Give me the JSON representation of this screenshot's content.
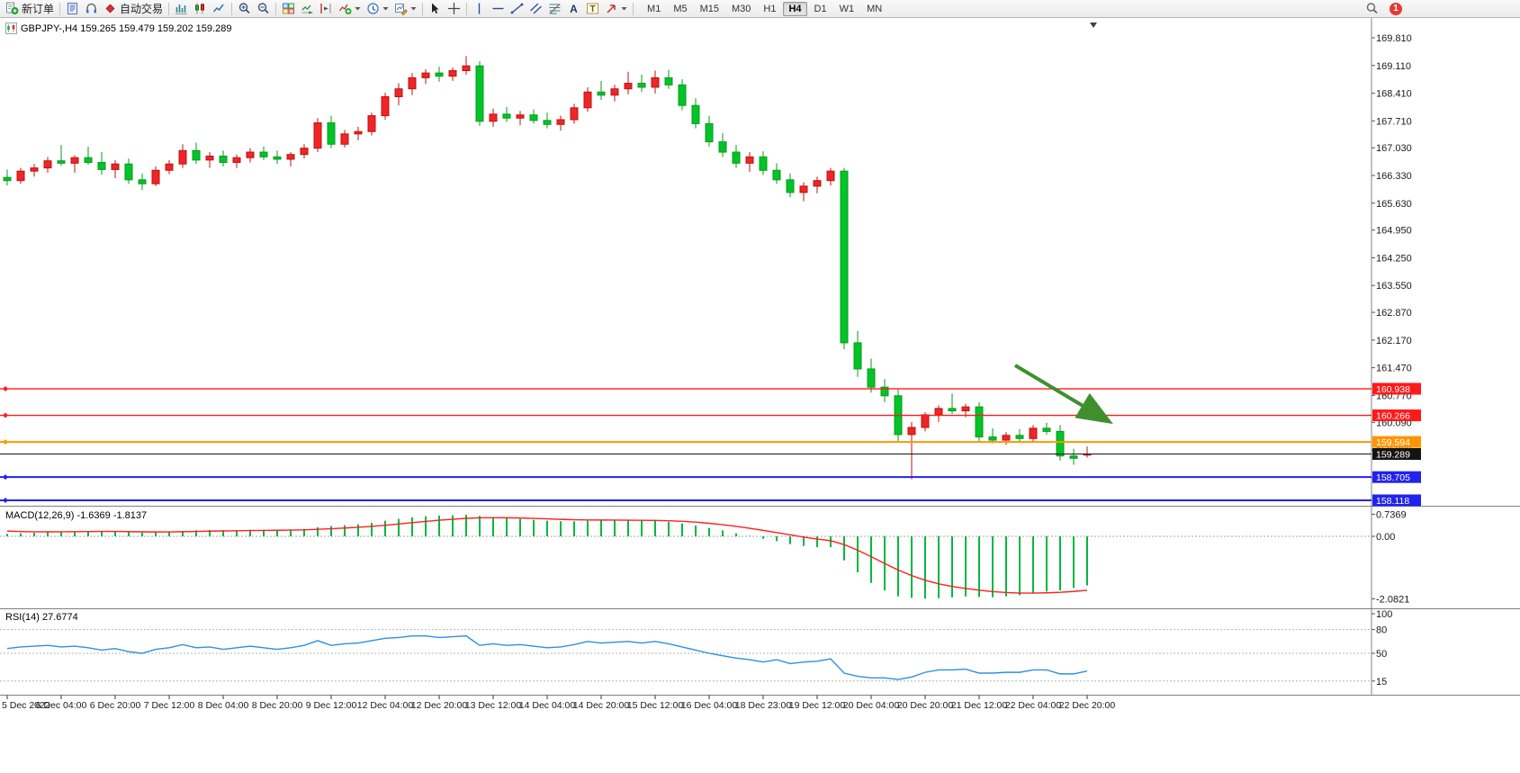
{
  "glyphs": {
    "text_tool": "A",
    "label_tool": "T"
  },
  "toolbar": {
    "new_order_label": "新订单",
    "autotrading_label": "自动交易",
    "timeframes": [
      "M1",
      "M5",
      "M15",
      "M30",
      "H1",
      "H4",
      "D1",
      "W1",
      "MN"
    ],
    "active_timeframe": "H4",
    "notification_count": "1"
  },
  "chart_header": {
    "title": "GBPJPY-,H4 159.265 159.479 159.202 159.289"
  },
  "panels": {
    "macd_label": "MACD(12,26,9) -1.6369 -1.8137",
    "rsi_label": "RSI(14) 27.6774"
  },
  "price_lines": [
    {
      "label": "160.938",
      "price": 160.938,
      "color": "#ff1a1a",
      "width": 1.4,
      "role": "resistance"
    },
    {
      "label": "160.266",
      "price": 160.266,
      "color": "#ff1a1a",
      "width": 1.4,
      "role": "resistance"
    },
    {
      "label": "159.594",
      "price": 159.594,
      "color": "#ff9500",
      "width": 2,
      "role": "support"
    },
    {
      "label": "159.289",
      "price": 159.289,
      "color": "#141414",
      "width": 1,
      "role": "current-bid"
    },
    {
      "label": "158.705",
      "price": 158.705,
      "color": "#2222ee",
      "width": 2,
      "role": "support"
    },
    {
      "label": "158.118",
      "price": 158.118,
      "color": "#2222ee",
      "width": 2,
      "role": "support"
    }
  ],
  "annotation": {
    "type": "arrow",
    "color": "#3f8f2f"
  },
  "colors": {
    "bull": "#f02525",
    "bull_border": "#b81414",
    "bear": "#00c428",
    "bear_border": "#089a1c",
    "macd_hist": "#00b840",
    "macd_signal": "#ff2020",
    "rsi_line": "#2f8fe0",
    "box_text": "#ffffff"
  },
  "chart_data": {
    "type": "candlestick",
    "symbol": "GBPJPY-",
    "timeframe": "H4",
    "convention": "red = bullish (close>open), green = bearish (close<open)",
    "y_range": [
      158.0,
      169.95
    ],
    "grid": false,
    "price_tick_labels": [
      "169.810",
      "169.110",
      "168.410",
      "167.710",
      "167.030",
      "166.330",
      "165.630",
      "164.950",
      "164.250",
      "163.550",
      "162.870",
      "162.170",
      "161.470",
      "160.770",
      "160.090",
      "159.390",
      "158.690"
    ],
    "price_tick_values": [
      169.81,
      169.11,
      168.41,
      167.71,
      167.03,
      166.33,
      165.63,
      164.95,
      164.25,
      163.55,
      162.87,
      162.17,
      161.47,
      160.77,
      160.09,
      159.39,
      158.69
    ],
    "x_tick_labels": [
      "5 Dec 2022",
      "6 Dec 04:00",
      "6 Dec 20:00",
      "7 Dec 12:00",
      "8 Dec 04:00",
      "8 Dec 20:00",
      "9 Dec 12:00",
      "12 Dec 04:00",
      "12 Dec 20:00",
      "13 Dec 12:00",
      "14 Dec 04:00",
      "14 Dec 20:00",
      "15 Dec 12:00",
      "16 Dec 04:00",
      "18 Dec 23:00",
      "19 Dec 12:00",
      "20 Dec 04:00",
      "20 Dec 20:00",
      "21 Dec 12:00",
      "22 Dec 04:00",
      "22 Dec 20:00"
    ],
    "macd_axis": {
      "max": "0.7369",
      "zero": "0.00",
      "min": "-2.0821"
    },
    "rsi_axis_levels": [
      "100",
      "80",
      "50",
      "15"
    ],
    "candles_ohlc": [
      [
        166.28,
        166.48,
        166.08,
        166.2
      ],
      [
        166.2,
        166.52,
        166.12,
        166.44
      ],
      [
        166.44,
        166.62,
        166.3,
        166.52
      ],
      [
        166.52,
        166.8,
        166.4,
        166.7
      ],
      [
        166.7,
        167.1,
        166.58,
        166.64
      ],
      [
        166.64,
        166.84,
        166.4,
        166.78
      ],
      [
        166.78,
        167.06,
        166.6,
        166.66
      ],
      [
        166.66,
        166.92,
        166.35,
        166.48
      ],
      [
        166.48,
        166.72,
        166.26,
        166.62
      ],
      [
        166.62,
        166.76,
        166.12,
        166.22
      ],
      [
        166.22,
        166.38,
        165.96,
        166.12
      ],
      [
        166.12,
        166.56,
        166.06,
        166.46
      ],
      [
        166.46,
        166.72,
        166.36,
        166.62
      ],
      [
        166.62,
        167.12,
        166.52,
        166.96
      ],
      [
        166.96,
        167.16,
        166.62,
        166.72
      ],
      [
        166.72,
        166.92,
        166.52,
        166.82
      ],
      [
        166.82,
        166.96,
        166.56,
        166.66
      ],
      [
        166.66,
        166.86,
        166.52,
        166.78
      ],
      [
        166.78,
        167.02,
        166.66,
        166.92
      ],
      [
        166.92,
        167.06,
        166.72,
        166.8
      ],
      [
        166.8,
        166.96,
        166.62,
        166.74
      ],
      [
        166.74,
        166.92,
        166.56,
        166.86
      ],
      [
        166.86,
        167.12,
        166.76,
        167.02
      ],
      [
        167.02,
        167.78,
        166.92,
        167.66
      ],
      [
        167.66,
        167.84,
        167.02,
        167.12
      ],
      [
        167.12,
        167.48,
        167.04,
        167.38
      ],
      [
        167.38,
        167.56,
        167.22,
        167.44
      ],
      [
        167.44,
        167.92,
        167.34,
        167.84
      ],
      [
        167.84,
        168.42,
        167.74,
        168.32
      ],
      [
        168.32,
        168.66,
        168.1,
        168.52
      ],
      [
        168.52,
        168.92,
        168.36,
        168.8
      ],
      [
        168.8,
        169.02,
        168.64,
        168.92
      ],
      [
        168.92,
        169.08,
        168.7,
        168.84
      ],
      [
        168.84,
        169.06,
        168.72,
        168.98
      ],
      [
        168.98,
        169.35,
        168.88,
        169.1
      ],
      [
        169.1,
        169.22,
        167.58,
        167.7
      ],
      [
        167.7,
        168.02,
        167.56,
        167.88
      ],
      [
        167.88,
        168.06,
        167.68,
        167.78
      ],
      [
        167.78,
        167.96,
        167.6,
        167.86
      ],
      [
        167.86,
        168.0,
        167.64,
        167.72
      ],
      [
        167.72,
        167.92,
        167.52,
        167.62
      ],
      [
        167.62,
        167.84,
        167.46,
        167.74
      ],
      [
        167.74,
        168.14,
        167.64,
        168.04
      ],
      [
        168.04,
        168.56,
        167.94,
        168.44
      ],
      [
        168.44,
        168.72,
        168.24,
        168.36
      ],
      [
        168.36,
        168.62,
        168.2,
        168.52
      ],
      [
        168.52,
        168.95,
        168.38,
        168.66
      ],
      [
        168.66,
        168.88,
        168.44,
        168.56
      ],
      [
        168.56,
        168.98,
        168.4,
        168.8
      ],
      [
        168.8,
        169.0,
        168.52,
        168.62
      ],
      [
        168.62,
        168.76,
        167.98,
        168.1
      ],
      [
        168.1,
        168.28,
        167.52,
        167.64
      ],
      [
        167.64,
        167.84,
        167.06,
        167.18
      ],
      [
        167.18,
        167.4,
        166.8,
        166.92
      ],
      [
        166.92,
        167.1,
        166.52,
        166.64
      ],
      [
        166.64,
        166.92,
        166.42,
        166.8
      ],
      [
        166.8,
        166.94,
        166.34,
        166.46
      ],
      [
        166.46,
        166.64,
        166.12,
        166.22
      ],
      [
        166.22,
        166.38,
        165.78,
        165.9
      ],
      [
        165.9,
        166.16,
        165.68,
        166.06
      ],
      [
        166.06,
        166.3,
        165.88,
        166.2
      ],
      [
        166.2,
        166.52,
        166.08,
        166.44
      ],
      [
        166.44,
        166.52,
        161.94,
        162.1
      ],
      [
        162.1,
        162.4,
        161.24,
        161.44
      ],
      [
        161.44,
        161.7,
        160.84,
        160.98
      ],
      [
        160.98,
        161.18,
        160.6,
        160.76
      ],
      [
        160.76,
        160.92,
        159.62,
        159.78
      ],
      [
        159.78,
        160.1,
        158.65,
        159.96
      ],
      [
        159.96,
        160.35,
        159.86,
        160.28
      ],
      [
        160.28,
        160.52,
        160.1,
        160.44
      ],
      [
        160.44,
        160.82,
        160.3,
        160.38
      ],
      [
        160.38,
        160.56,
        160.22,
        160.48
      ],
      [
        160.48,
        160.6,
        159.6,
        159.72
      ],
      [
        159.72,
        159.94,
        159.56,
        159.64
      ],
      [
        159.64,
        159.84,
        159.52,
        159.76
      ],
      [
        159.76,
        159.92,
        159.6,
        159.68
      ],
      [
        159.68,
        160.02,
        159.58,
        159.94
      ],
      [
        159.94,
        160.08,
        159.78,
        159.86
      ],
      [
        159.86,
        160.02,
        159.12,
        159.24
      ],
      [
        159.24,
        159.42,
        159.02,
        159.18
      ],
      [
        159.265,
        159.479,
        159.202,
        159.289
      ]
    ],
    "series": [
      {
        "name": "MACD(12,26,9) histogram",
        "values": [
          0.08,
          0.1,
          0.12,
          0.14,
          0.16,
          0.17,
          0.18,
          0.17,
          0.16,
          0.14,
          0.12,
          0.13,
          0.15,
          0.18,
          0.2,
          0.21,
          0.21,
          0.21,
          0.22,
          0.22,
          0.22,
          0.23,
          0.25,
          0.3,
          0.34,
          0.37,
          0.4,
          0.45,
          0.52,
          0.58,
          0.63,
          0.67,
          0.69,
          0.7,
          0.72,
          0.68,
          0.64,
          0.61,
          0.58,
          0.55,
          0.52,
          0.5,
          0.5,
          0.52,
          0.53,
          0.53,
          0.53,
          0.52,
          0.51,
          0.48,
          0.43,
          0.36,
          0.28,
          0.2,
          0.1,
          0.02,
          -0.08,
          -0.16,
          -0.26,
          -0.32,
          -0.36,
          -0.36,
          -0.8,
          -1.2,
          -1.55,
          -1.8,
          -2.0,
          -2.05,
          -2.08,
          -2.06,
          -2.03,
          -2.0,
          -2.02,
          -2.03,
          -2.0,
          -1.96,
          -1.9,
          -1.84,
          -1.8,
          -1.72,
          -1.6369
        ],
        "last": -1.6369,
        "signal_last": -1.8137
      },
      {
        "name": "RSI(14)",
        "values": [
          56,
          58,
          59,
          60,
          58,
          59,
          57,
          54,
          56,
          52,
          50,
          55,
          57,
          61,
          57,
          58,
          55,
          57,
          59,
          57,
          55,
          57,
          60,
          66,
          60,
          62,
          63,
          66,
          69,
          70,
          72,
          72,
          70,
          71,
          72,
          60,
          62,
          60,
          61,
          59,
          57,
          58,
          61,
          65,
          63,
          64,
          65,
          63,
          65,
          62,
          58,
          54,
          50,
          47,
          44,
          42,
          39,
          42,
          37,
          39,
          40,
          43,
          25,
          21,
          19,
          19,
          17,
          20,
          26,
          29,
          29,
          30,
          25,
          25,
          26,
          26,
          29,
          29,
          24,
          24,
          27.6774
        ],
        "last": 27.6774
      }
    ]
  }
}
